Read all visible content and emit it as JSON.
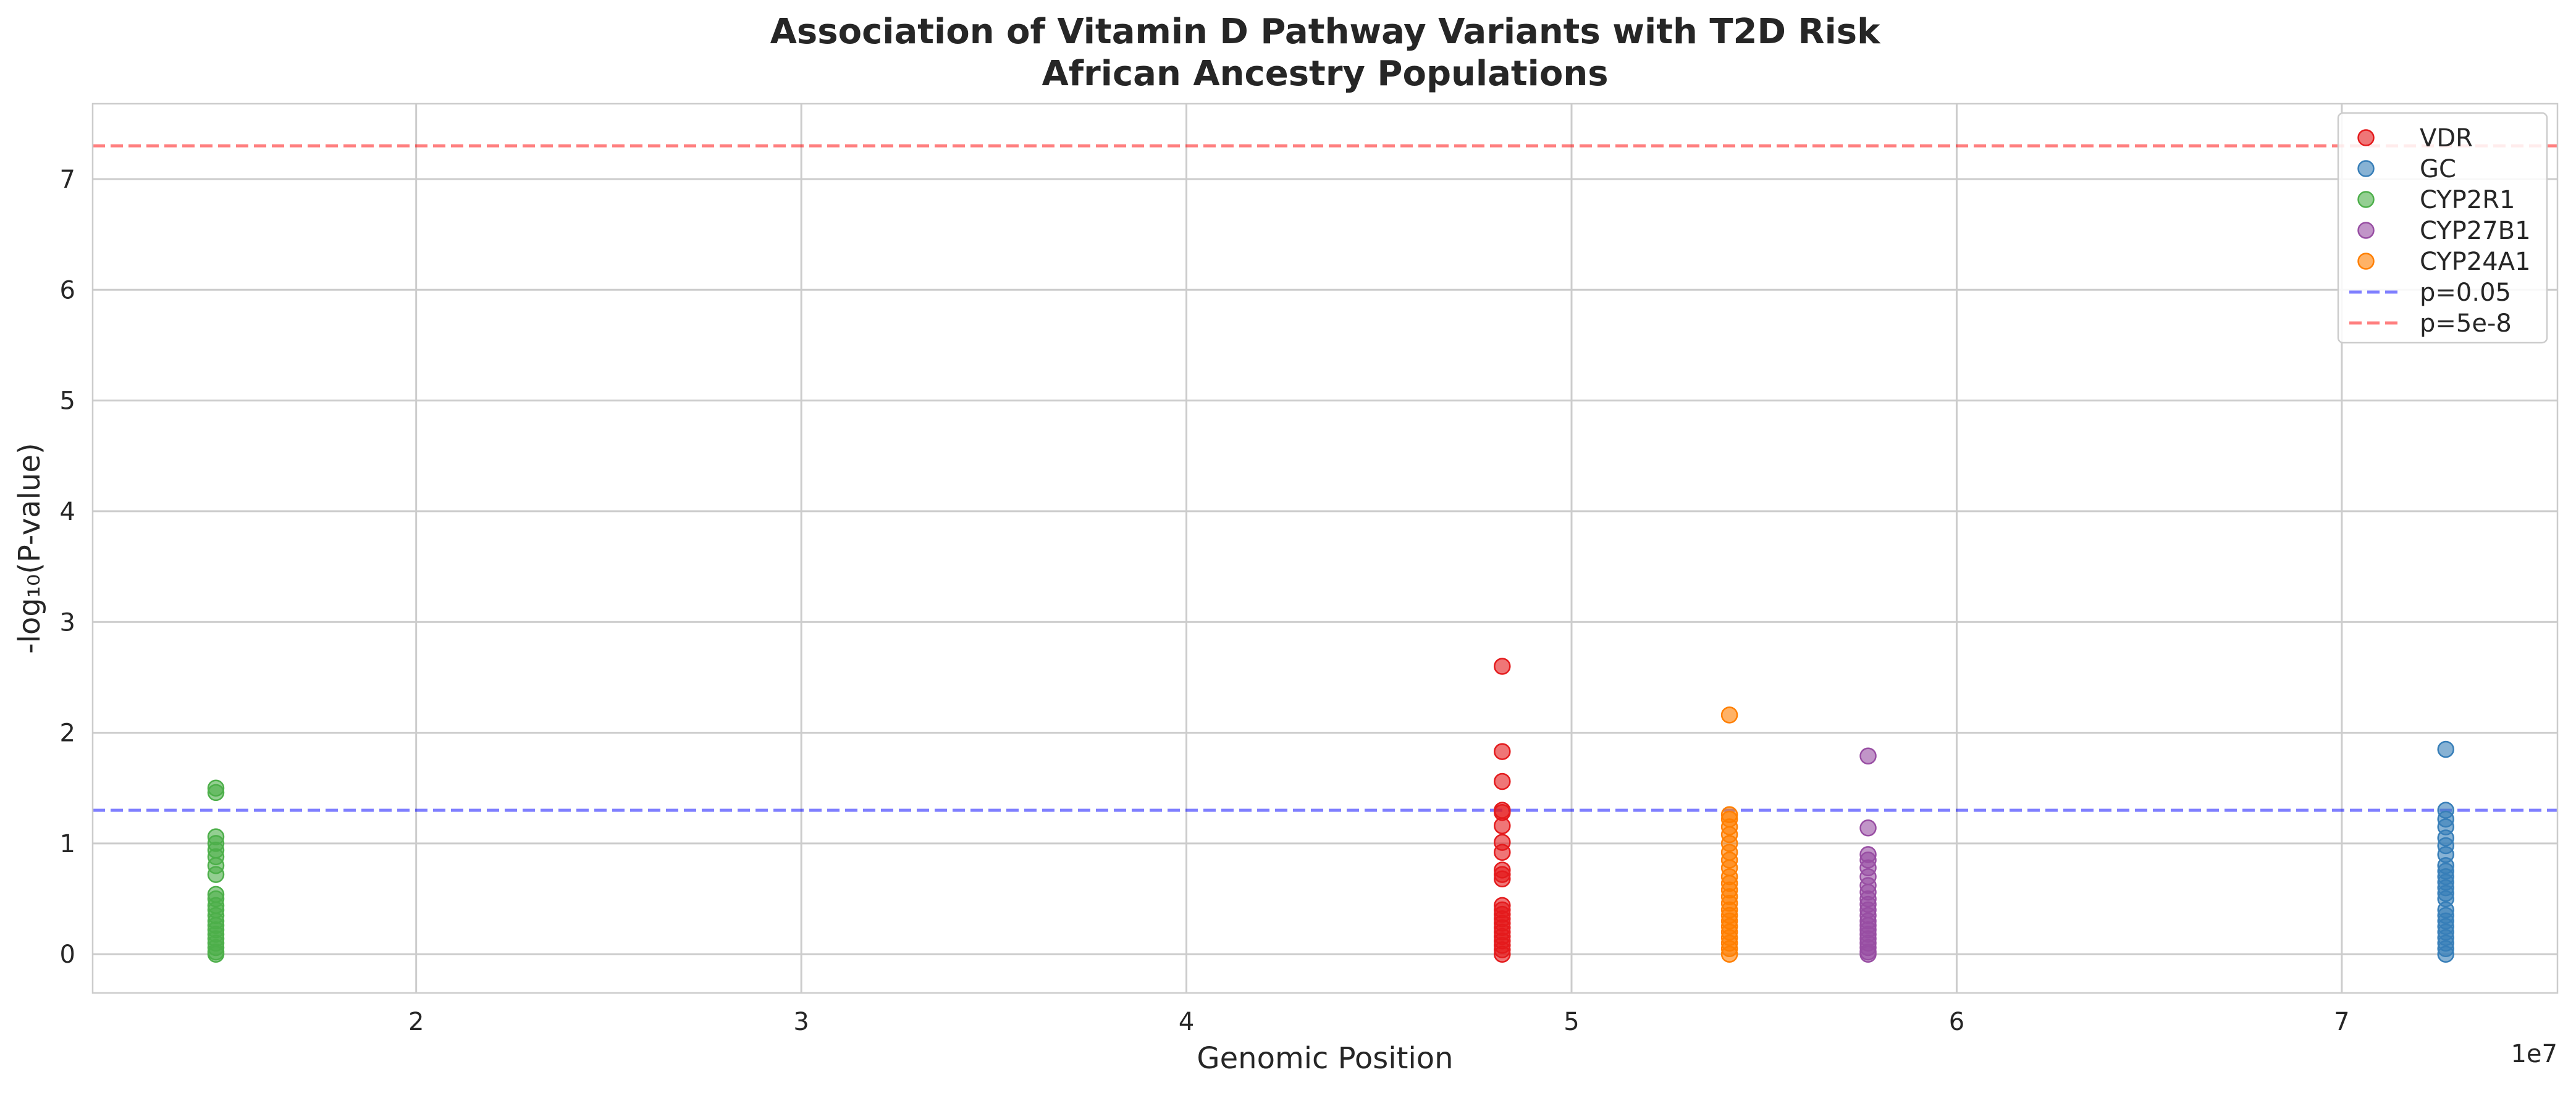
{
  "chart_data": {
    "type": "scatter",
    "title": [
      "Association of Vitamin D Pathway Variants with T2D Risk",
      "African Ancestry Populations"
    ],
    "xlabel": "Genomic Position",
    "ylabel": "-log₁₀(P-value)",
    "x_offset_label": "1e7",
    "xlim": [
      11600000,
      75600000
    ],
    "ylim": [
      -0.35,
      7.68
    ],
    "xticks": [
      20000000,
      30000000,
      40000000,
      50000000,
      60000000,
      70000000
    ],
    "xtick_labels": [
      "2",
      "3",
      "4",
      "5",
      "6",
      "7"
    ],
    "yticks": [
      0,
      1,
      2,
      3,
      4,
      5,
      6,
      7
    ],
    "ytick_labels": [
      "0",
      "1",
      "2",
      "3",
      "4",
      "5",
      "6",
      "7"
    ],
    "grid": true,
    "legend_position": "top-right",
    "series": [
      {
        "name": "VDR",
        "color": "#e41a1c",
        "x": 48200000,
        "y": [
          2.6,
          1.83,
          1.56,
          1.3,
          1.28,
          1.16,
          1.01,
          0.92,
          0.76,
          0.72,
          0.68,
          0.44,
          0.4,
          0.36,
          0.32,
          0.28,
          0.24,
          0.2,
          0.16,
          0.12,
          0.08,
          0.04,
          0.0
        ]
      },
      {
        "name": "GC",
        "color": "#377eb8",
        "x": 72700000,
        "y": [
          1.85,
          1.3,
          1.22,
          1.15,
          1.05,
          0.98,
          0.9,
          0.8,
          0.75,
          0.7,
          0.65,
          0.6,
          0.55,
          0.5,
          0.4,
          0.35,
          0.3,
          0.25,
          0.2,
          0.15,
          0.1,
          0.05,
          0.0
        ]
      },
      {
        "name": "CYP2R1",
        "color": "#4daf4a",
        "x": 14800000,
        "y": [
          1.5,
          1.46,
          1.06,
          1.0,
          0.94,
          0.88,
          0.8,
          0.72,
          0.54,
          0.5,
          0.44,
          0.4,
          0.35,
          0.3,
          0.26,
          0.22,
          0.18,
          0.14,
          0.1,
          0.06,
          0.02,
          0.0
        ]
      },
      {
        "name": "CYP27B1",
        "color": "#984ea3",
        "x": 57700000,
        "y": [
          1.79,
          1.14,
          0.9,
          0.85,
          0.78,
          0.7,
          0.62,
          0.56,
          0.5,
          0.45,
          0.4,
          0.35,
          0.3,
          0.26,
          0.22,
          0.18,
          0.14,
          0.1,
          0.06,
          0.02,
          0.0
        ]
      },
      {
        "name": "CYP24A1",
        "color": "#ff7f00",
        "x": 54100000,
        "y": [
          2.16,
          1.26,
          1.22,
          1.15,
          1.08,
          1.0,
          0.92,
          0.85,
          0.78,
          0.7,
          0.64,
          0.58,
          0.52,
          0.46,
          0.4,
          0.35,
          0.3,
          0.25,
          0.2,
          0.15,
          0.1,
          0.05,
          0.0
        ]
      }
    ],
    "reference_lines": [
      {
        "name": "p=0.05",
        "y": 1.3,
        "color": "#0000ff"
      },
      {
        "name": "p=5e-8",
        "y": 7.3,
        "color": "#ff0000"
      }
    ]
  }
}
